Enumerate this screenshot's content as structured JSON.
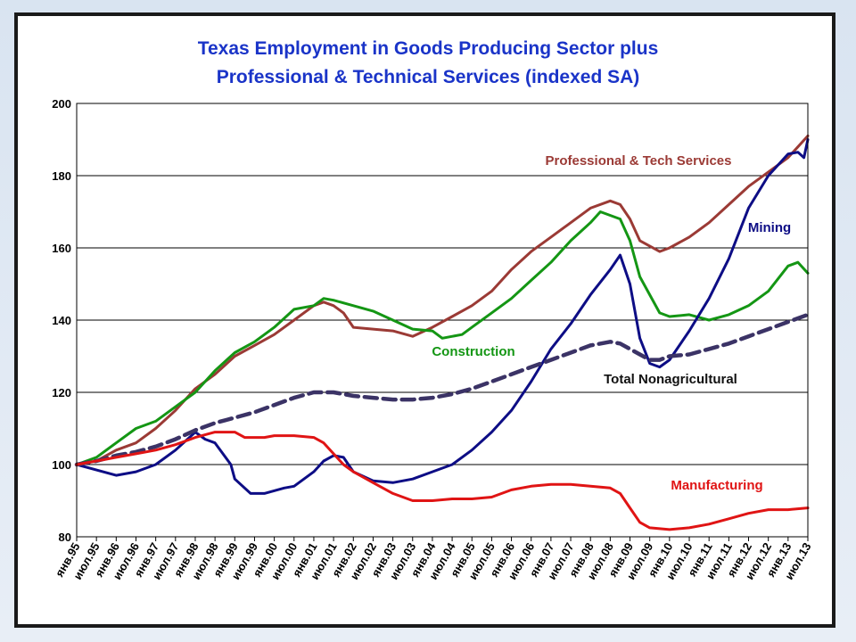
{
  "chart_data": {
    "type": "line",
    "title_line1": "Texas Employment in Goods Producing Sector  plus",
    "title_line2": "Professional & Technical Services  (indexed SA)",
    "ylim": [
      80,
      200
    ],
    "yticks": [
      80,
      100,
      120,
      140,
      160,
      180,
      200
    ],
    "grid": true,
    "xlim": [
      1995.0,
      2013.5
    ],
    "xtick_labels": [
      "янв.95",
      "июл.95",
      "янв.96",
      "июл.96",
      "янв.97",
      "июл.97",
      "янв.98",
      "июл.98",
      "янв.99",
      "июл.99",
      "янв.00",
      "июл.00",
      "янв.01",
      "июл.01",
      "янв.02",
      "июл.02",
      "янв.03",
      "июл.03",
      "янв.04",
      "июл.04",
      "янв.05",
      "июл.05",
      "янв.06",
      "июл.06",
      "янв.07",
      "июл.07",
      "янв.08",
      "июл.08",
      "янв.09",
      "июл.09",
      "янв.10",
      "июл.10",
      "янв.11",
      "июл.11",
      "янв.12",
      "июл.12",
      "янв.13",
      "июл.13"
    ],
    "series": [
      {
        "name": "Professional  & Tech Services",
        "color": "#9b3a35",
        "style": "solid",
        "points": [
          [
            1995.0,
            100
          ],
          [
            1995.5,
            101
          ],
          [
            1996.0,
            104
          ],
          [
            1996.5,
            106
          ],
          [
            1997.0,
            110
          ],
          [
            1997.5,
            115
          ],
          [
            1998.0,
            121
          ],
          [
            1998.5,
            125
          ],
          [
            1999.0,
            130
          ],
          [
            1999.5,
            133
          ],
          [
            2000.0,
            136
          ],
          [
            2000.5,
            140
          ],
          [
            2001.0,
            144
          ],
          [
            2001.25,
            145
          ],
          [
            2001.5,
            144
          ],
          [
            2001.75,
            142
          ],
          [
            2002.0,
            138
          ],
          [
            2002.5,
            137.5
          ],
          [
            2003.0,
            137
          ],
          [
            2003.5,
            135.5
          ],
          [
            2004.0,
            138
          ],
          [
            2004.5,
            141
          ],
          [
            2005.0,
            144
          ],
          [
            2005.5,
            148
          ],
          [
            2006.0,
            154
          ],
          [
            2006.5,
            159
          ],
          [
            2007.0,
            163
          ],
          [
            2007.5,
            167
          ],
          [
            2008.0,
            171
          ],
          [
            2008.5,
            173
          ],
          [
            2008.75,
            172
          ],
          [
            2009.0,
            168
          ],
          [
            2009.25,
            162
          ],
          [
            2009.75,
            159
          ],
          [
            2010.0,
            160
          ],
          [
            2010.5,
            163
          ],
          [
            2011.0,
            167
          ],
          [
            2011.5,
            172
          ],
          [
            2012.0,
            177
          ],
          [
            2012.5,
            181
          ],
          [
            2013.0,
            185
          ],
          [
            2013.5,
            191
          ]
        ]
      },
      {
        "name": "Construction",
        "color": "#149614",
        "style": "solid",
        "points": [
          [
            1995.0,
            100
          ],
          [
            1995.5,
            102
          ],
          [
            1996.0,
            106
          ],
          [
            1996.5,
            110
          ],
          [
            1997.0,
            112
          ],
          [
            1997.5,
            116
          ],
          [
            1998.0,
            120
          ],
          [
            1998.5,
            126
          ],
          [
            1999.0,
            131
          ],
          [
            1999.5,
            134
          ],
          [
            2000.0,
            138
          ],
          [
            2000.5,
            143
          ],
          [
            2001.0,
            144
          ],
          [
            2001.25,
            146
          ],
          [
            2001.5,
            145.5
          ],
          [
            2002.0,
            144
          ],
          [
            2002.5,
            142.5
          ],
          [
            2003.0,
            140
          ],
          [
            2003.5,
            137.5
          ],
          [
            2004.0,
            137
          ],
          [
            2004.25,
            135
          ],
          [
            2004.75,
            136
          ],
          [
            2005.0,
            138
          ],
          [
            2005.5,
            142
          ],
          [
            2006.0,
            146
          ],
          [
            2006.5,
            151
          ],
          [
            2007.0,
            156
          ],
          [
            2007.5,
            162
          ],
          [
            2008.0,
            167
          ],
          [
            2008.25,
            170
          ],
          [
            2008.75,
            168
          ],
          [
            2009.0,
            162
          ],
          [
            2009.25,
            152
          ],
          [
            2009.75,
            142
          ],
          [
            2010.0,
            141
          ],
          [
            2010.5,
            141.5
          ],
          [
            2011.0,
            140
          ],
          [
            2011.5,
            141.5
          ],
          [
            2012.0,
            144
          ],
          [
            2012.5,
            148
          ],
          [
            2013.0,
            155
          ],
          [
            2013.25,
            156
          ],
          [
            2013.5,
            153
          ]
        ]
      },
      {
        "name": "Mining",
        "color": "#0d0d85",
        "style": "solid",
        "points": [
          [
            1995.0,
            100
          ],
          [
            1995.5,
            98.5
          ],
          [
            1996.0,
            97
          ],
          [
            1996.5,
            98
          ],
          [
            1997.0,
            100
          ],
          [
            1997.5,
            104
          ],
          [
            1998.0,
            109
          ],
          [
            1998.25,
            107
          ],
          [
            1998.5,
            106
          ],
          [
            1998.9,
            100
          ],
          [
            1999.0,
            96
          ],
          [
            1999.4,
            92
          ],
          [
            1999.75,
            92
          ],
          [
            2000.25,
            93.5
          ],
          [
            2000.5,
            94
          ],
          [
            2001.0,
            98
          ],
          [
            2001.25,
            101
          ],
          [
            2001.5,
            102.5
          ],
          [
            2001.75,
            102
          ],
          [
            2002.0,
            98
          ],
          [
            2002.5,
            95.5
          ],
          [
            2003.0,
            95
          ],
          [
            2003.5,
            96
          ],
          [
            2004.0,
            98
          ],
          [
            2004.5,
            100
          ],
          [
            2005.0,
            104
          ],
          [
            2005.5,
            109
          ],
          [
            2006.0,
            115
          ],
          [
            2006.5,
            123
          ],
          [
            2007.0,
            132
          ],
          [
            2007.5,
            139
          ],
          [
            2008.0,
            147
          ],
          [
            2008.5,
            154
          ],
          [
            2008.75,
            158
          ],
          [
            2009.0,
            150
          ],
          [
            2009.25,
            135
          ],
          [
            2009.5,
            128
          ],
          [
            2009.75,
            127
          ],
          [
            2010.0,
            129
          ],
          [
            2010.5,
            137
          ],
          [
            2011.0,
            146
          ],
          [
            2011.5,
            157
          ],
          [
            2012.0,
            171
          ],
          [
            2012.5,
            180
          ],
          [
            2013.0,
            186
          ],
          [
            2013.25,
            186.5
          ],
          [
            2013.4,
            185
          ],
          [
            2013.5,
            190
          ]
        ]
      },
      {
        "name": "Total  Nonagricultural",
        "color": "#3b3366",
        "style": "dashed",
        "points": [
          [
            1995.0,
            100
          ],
          [
            1995.5,
            101
          ],
          [
            1996.0,
            102.5
          ],
          [
            1996.5,
            103.5
          ],
          [
            1997.0,
            105
          ],
          [
            1997.5,
            107
          ],
          [
            1998.0,
            109.5
          ],
          [
            1998.5,
            111.5
          ],
          [
            1999.0,
            113
          ],
          [
            1999.5,
            114.5
          ],
          [
            2000.0,
            116.5
          ],
          [
            2000.5,
            118.5
          ],
          [
            2001.0,
            120
          ],
          [
            2001.5,
            120
          ],
          [
            2002.0,
            119
          ],
          [
            2002.5,
            118.5
          ],
          [
            2003.0,
            118
          ],
          [
            2003.5,
            118
          ],
          [
            2004.0,
            118.5
          ],
          [
            2004.5,
            119.5
          ],
          [
            2005.0,
            121
          ],
          [
            2005.5,
            123
          ],
          [
            2006.0,
            125
          ],
          [
            2006.5,
            127
          ],
          [
            2007.0,
            129
          ],
          [
            2007.5,
            131
          ],
          [
            2008.0,
            133
          ],
          [
            2008.5,
            134
          ],
          [
            2008.75,
            133.5
          ],
          [
            2009.0,
            132
          ],
          [
            2009.5,
            129
          ],
          [
            2009.75,
            129
          ],
          [
            2010.0,
            130
          ],
          [
            2010.5,
            130.5
          ],
          [
            2011.0,
            132
          ],
          [
            2011.5,
            133.5
          ],
          [
            2012.0,
            135.5
          ],
          [
            2012.5,
            137.5
          ],
          [
            2013.0,
            139.5
          ],
          [
            2013.5,
            141.5
          ]
        ]
      },
      {
        "name": "Manufacturing",
        "color": "#e01414",
        "style": "solid",
        "points": [
          [
            1995.0,
            100
          ],
          [
            1995.5,
            101
          ],
          [
            1996.0,
            102
          ],
          [
            1996.5,
            103
          ],
          [
            1997.0,
            104
          ],
          [
            1997.5,
            105.5
          ],
          [
            1998.0,
            107.5
          ],
          [
            1998.5,
            109
          ],
          [
            1999.0,
            109
          ],
          [
            1999.25,
            107.5
          ],
          [
            1999.75,
            107.5
          ],
          [
            2000.0,
            108
          ],
          [
            2000.5,
            108
          ],
          [
            2001.0,
            107.5
          ],
          [
            2001.25,
            106
          ],
          [
            2001.5,
            103
          ],
          [
            2001.75,
            100
          ],
          [
            2002.0,
            98
          ],
          [
            2002.5,
            95
          ],
          [
            2003.0,
            92
          ],
          [
            2003.5,
            90
          ],
          [
            2004.0,
            90
          ],
          [
            2004.5,
            90.5
          ],
          [
            2005.0,
            90.5
          ],
          [
            2005.5,
            91
          ],
          [
            2006.0,
            93
          ],
          [
            2006.5,
            94
          ],
          [
            2007.0,
            94.5
          ],
          [
            2007.5,
            94.5
          ],
          [
            2008.0,
            94
          ],
          [
            2008.5,
            93.5
          ],
          [
            2008.75,
            92
          ],
          [
            2009.0,
            88
          ],
          [
            2009.25,
            84
          ],
          [
            2009.5,
            82.5
          ],
          [
            2010.0,
            82
          ],
          [
            2010.5,
            82.5
          ],
          [
            2011.0,
            83.5
          ],
          [
            2011.5,
            85
          ],
          [
            2012.0,
            86.5
          ],
          [
            2012.5,
            87.5
          ],
          [
            2013.0,
            87.5
          ],
          [
            2013.5,
            88
          ]
        ]
      }
    ]
  }
}
